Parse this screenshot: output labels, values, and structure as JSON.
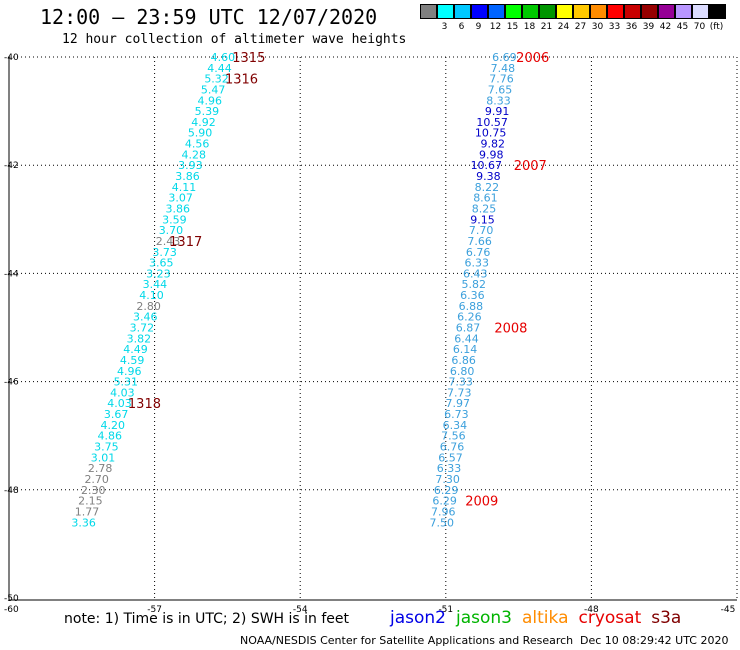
{
  "header": {
    "title": "12:00 – 23:59 UTC 12/07/2020",
    "subtitle": "12 hour collection of altimeter wave heights"
  },
  "color_scale": {
    "colors": [
      "#808080",
      "#00ffff",
      "#00c8ff",
      "#0000ff",
      "#0064ff",
      "#00ff00",
      "#00c800",
      "#009600",
      "#ffff00",
      "#ffc800",
      "#ff8c00",
      "#ff0000",
      "#c80000",
      "#960000",
      "#960096",
      "#b996ff",
      "#dcdcff",
      "#000000"
    ],
    "labels": [
      "3",
      "6",
      "9",
      "12",
      "15",
      "18",
      "21",
      "24",
      "27",
      "30",
      "33",
      "36",
      "39",
      "42",
      "45",
      "70",
      "(ft)"
    ]
  },
  "map": {
    "lat_ticks": [
      "-40",
      "-42",
      "-44",
      "-46",
      "-48",
      "-50"
    ],
    "lon_ticks": [
      "-57",
      "-54",
      "-51",
      "-48",
      "-45"
    ],
    "corner_label": "-60",
    "tracks": [
      {
        "name": "west",
        "color": "#00d8e8",
        "observations": [
          {
            "lon": -56.0,
            "lat": -40.0,
            "value": "4.60"
          },
          {
            "lon": -56.07,
            "lat": -40.2,
            "value": "4.44"
          },
          {
            "lon": -56.13,
            "lat": -40.4,
            "value": "5.32"
          },
          {
            "lon": -56.2,
            "lat": -40.6,
            "value": "5.47"
          },
          {
            "lon": -56.27,
            "lat": -40.8,
            "value": "4.96"
          },
          {
            "lon": -56.33,
            "lat": -41.0,
            "value": "5.39"
          },
          {
            "lon": -56.4,
            "lat": -41.2,
            "value": "4.92"
          },
          {
            "lon": -56.47,
            "lat": -41.4,
            "value": "5.90"
          },
          {
            "lon": -56.53,
            "lat": -41.6,
            "value": "4.56"
          },
          {
            "lon": -56.6,
            "lat": -41.8,
            "value": "4.28"
          },
          {
            "lon": -56.67,
            "lat": -42.0,
            "value": "3.93"
          },
          {
            "lon": -56.73,
            "lat": -42.2,
            "value": "3.86"
          },
          {
            "lon": -56.8,
            "lat": -42.4,
            "value": "4.11"
          },
          {
            "lon": -56.87,
            "lat": -42.6,
            "value": "3.07"
          },
          {
            "lon": -56.93,
            "lat": -42.8,
            "value": "3.86"
          },
          {
            "lon": -57.0,
            "lat": -43.0,
            "value": "3.59"
          },
          {
            "lon": -57.07,
            "lat": -43.2,
            "value": "3.70"
          },
          {
            "lon": -57.13,
            "lat": -43.4,
            "value": "2.43",
            "color": "#808080"
          },
          {
            "lon": -57.2,
            "lat": -43.6,
            "value": "3.73"
          },
          {
            "lon": -57.27,
            "lat": -43.8,
            "value": "3.65"
          },
          {
            "lon": -57.33,
            "lat": -44.0,
            "value": "3.23"
          },
          {
            "lon": -57.4,
            "lat": -44.2,
            "value": "3.44"
          },
          {
            "lon": -57.47,
            "lat": -44.4,
            "value": "4.10"
          },
          {
            "lon": -57.53,
            "lat": -44.6,
            "value": "2.80",
            "color": "#808080"
          },
          {
            "lon": -57.6,
            "lat": -44.8,
            "value": "3.46"
          },
          {
            "lon": -57.67,
            "lat": -45.0,
            "value": "3.72"
          },
          {
            "lon": -57.73,
            "lat": -45.2,
            "value": "3.82"
          },
          {
            "lon": -57.8,
            "lat": -45.4,
            "value": "4.49"
          },
          {
            "lon": -57.87,
            "lat": -45.6,
            "value": "4.59"
          },
          {
            "lon": -57.93,
            "lat": -45.8,
            "value": "4.96"
          },
          {
            "lon": -58.0,
            "lat": -46.0,
            "value": "5.31"
          },
          {
            "lon": -58.07,
            "lat": -46.2,
            "value": "4.03"
          },
          {
            "lon": -58.13,
            "lat": -46.4,
            "value": "4.03"
          },
          {
            "lon": -58.2,
            "lat": -46.6,
            "value": "3.67"
          },
          {
            "lon": -58.27,
            "lat": -46.8,
            "value": "4.20"
          },
          {
            "lon": -58.33,
            "lat": -47.0,
            "value": "4.86"
          },
          {
            "lon": -58.4,
            "lat": -47.2,
            "value": "3.75"
          },
          {
            "lon": -58.47,
            "lat": -47.4,
            "value": "3.01"
          },
          {
            "lon": -58.53,
            "lat": -47.6,
            "value": "2.78",
            "color": "#808080"
          },
          {
            "lon": -58.6,
            "lat": -47.8,
            "value": "2.70",
            "color": "#808080"
          },
          {
            "lon": -58.67,
            "lat": -48.0,
            "value": "2.30",
            "color": "#808080"
          },
          {
            "lon": -58.73,
            "lat": -48.2,
            "value": "2.15",
            "color": "#808080"
          },
          {
            "lon": -58.8,
            "lat": -48.4,
            "value": "1.77",
            "color": "#808080"
          },
          {
            "lon": -58.87,
            "lat": -48.6,
            "value": "3.36"
          }
        ],
        "time_labels": [
          {
            "lon": -55.4,
            "lat": -40.0,
            "text": "1315"
          },
          {
            "lon": -55.55,
            "lat": -40.4,
            "text": "1316"
          },
          {
            "lon": -56.7,
            "lat": -43.4,
            "text": "1317"
          },
          {
            "lon": -57.55,
            "lat": -46.4,
            "text": "1318"
          }
        ],
        "time_color": "#800000"
      },
      {
        "name": "east",
        "color": "#3ca0dc",
        "observations": [
          {
            "lon": -50.2,
            "lat": -40.0,
            "value": "6.69"
          },
          {
            "lon": -50.23,
            "lat": -40.2,
            "value": "7.48"
          },
          {
            "lon": -50.26,
            "lat": -40.4,
            "value": "7.76"
          },
          {
            "lon": -50.29,
            "lat": -40.6,
            "value": "7.65"
          },
          {
            "lon": -50.32,
            "lat": -40.8,
            "value": "8.33"
          },
          {
            "lon": -50.35,
            "lat": -41.0,
            "value": "9.91",
            "color": "#0000c8"
          },
          {
            "lon": -50.38,
            "lat": -41.2,
            "value": "10.57",
            "color": "#0000c8"
          },
          {
            "lon": -50.41,
            "lat": -41.4,
            "value": "10.75",
            "color": "#0000c8"
          },
          {
            "lon": -50.44,
            "lat": -41.6,
            "value": "9.82",
            "color": "#0000c8"
          },
          {
            "lon": -50.47,
            "lat": -41.8,
            "value": "9.98",
            "color": "#0000c8"
          },
          {
            "lon": -50.5,
            "lat": -42.0,
            "value": "10.67",
            "color": "#0000c8"
          },
          {
            "lon": -50.53,
            "lat": -42.2,
            "value": "9.38",
            "color": "#0000c8"
          },
          {
            "lon": -50.56,
            "lat": -42.4,
            "value": "8.22"
          },
          {
            "lon": -50.59,
            "lat": -42.6,
            "value": "8.61"
          },
          {
            "lon": -50.62,
            "lat": -42.8,
            "value": "8.25"
          },
          {
            "lon": -50.65,
            "lat": -43.0,
            "value": "9.15",
            "color": "#0000c8"
          },
          {
            "lon": -50.68,
            "lat": -43.2,
            "value": "7.70"
          },
          {
            "lon": -50.71,
            "lat": -43.4,
            "value": "7.66"
          },
          {
            "lon": -50.74,
            "lat": -43.6,
            "value": "6.76"
          },
          {
            "lon": -50.77,
            "lat": -43.8,
            "value": "6.33"
          },
          {
            "lon": -50.8,
            "lat": -44.0,
            "value": "6.43"
          },
          {
            "lon": -50.83,
            "lat": -44.2,
            "value": "5.82"
          },
          {
            "lon": -50.86,
            "lat": -44.4,
            "value": "6.36"
          },
          {
            "lon": -50.89,
            "lat": -44.6,
            "value": "6.88"
          },
          {
            "lon": -50.92,
            "lat": -44.8,
            "value": "6.26"
          },
          {
            "lon": -50.95,
            "lat": -45.0,
            "value": "6.87"
          },
          {
            "lon": -50.98,
            "lat": -45.2,
            "value": "6.44"
          },
          {
            "lon": -51.01,
            "lat": -45.4,
            "value": "6.14"
          },
          {
            "lon": -51.04,
            "lat": -45.6,
            "value": "6.86"
          },
          {
            "lon": -51.07,
            "lat": -45.8,
            "value": "6.80"
          },
          {
            "lon": -51.1,
            "lat": -46.0,
            "value": "7.33"
          },
          {
            "lon": -51.13,
            "lat": -46.2,
            "value": "7.73"
          },
          {
            "lon": -51.16,
            "lat": -46.4,
            "value": "7.97"
          },
          {
            "lon": -51.19,
            "lat": -46.6,
            "value": "6.73"
          },
          {
            "lon": -51.22,
            "lat": -46.8,
            "value": "6.34"
          },
          {
            "lon": -51.25,
            "lat": -47.0,
            "value": "7.56"
          },
          {
            "lon": -51.28,
            "lat": -47.2,
            "value": "6.76"
          },
          {
            "lon": -51.31,
            "lat": -47.4,
            "value": "6.57"
          },
          {
            "lon": -51.34,
            "lat": -47.6,
            "value": "6.33"
          },
          {
            "lon": -51.37,
            "lat": -47.8,
            "value": "7.30"
          },
          {
            "lon": -51.4,
            "lat": -48.0,
            "value": "6.29"
          },
          {
            "lon": -51.43,
            "lat": -48.2,
            "value": "6.29"
          },
          {
            "lon": -51.46,
            "lat": -48.4,
            "value": "7.96"
          },
          {
            "lon": -51.49,
            "lat": -48.6,
            "value": "7.50"
          }
        ],
        "time_labels": [
          {
            "lon": -49.55,
            "lat": -40.0,
            "text": "2006"
          },
          {
            "lon": -49.6,
            "lat": -42.0,
            "text": "2007"
          },
          {
            "lon": -50.0,
            "lat": -45.0,
            "text": "2008"
          },
          {
            "lon": -50.6,
            "lat": -48.2,
            "text": "2009"
          }
        ],
        "time_color": "#e60000"
      }
    ]
  },
  "footer": {
    "note": "note:  1) Time is in UTC;  2) SWH is in feet",
    "satellites": [
      {
        "name": "jason2",
        "color": "#0000e6"
      },
      {
        "name": "jason3",
        "color": "#00b400"
      },
      {
        "name": "altika",
        "color": "#ff8c00"
      },
      {
        "name": "cryosat",
        "color": "#e60000"
      },
      {
        "name": "s3a",
        "color": "#800000"
      }
    ],
    "credit": "NOAA/NESDIS Center for Satellite Applications and Research",
    "timestamp": "Dec 10 08:29:42 UTC 2020"
  }
}
